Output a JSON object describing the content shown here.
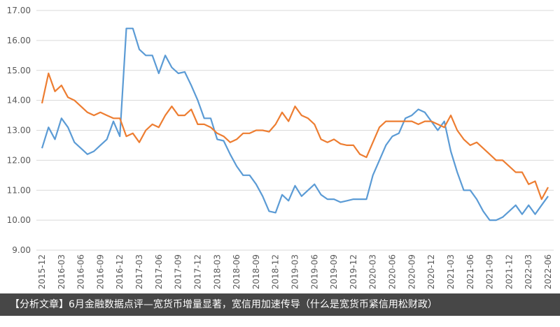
{
  "chart_data": {
    "type": "line",
    "categories": [
      "2015-12",
      null,
      null,
      "2016-03",
      null,
      null,
      "2016-06",
      null,
      null,
      "2016-09",
      null,
      null,
      "2016-12",
      null,
      null,
      "2017-03",
      null,
      null,
      "2017-06",
      null,
      null,
      "2017-09",
      null,
      null,
      "2017-12",
      null,
      null,
      "2018-03",
      null,
      null,
      "2018-06",
      null,
      null,
      "2018-09",
      null,
      null,
      "2018-12",
      null,
      null,
      "2019-03",
      null,
      null,
      "2019-06",
      null,
      null,
      "2019-09",
      null,
      null,
      "2019-12",
      null,
      null,
      "2020-03",
      null,
      null,
      "2020-06",
      null,
      null,
      "2020-09",
      null,
      null,
      "2020-12",
      null,
      null,
      "2021-03",
      null,
      null,
      "2021-06",
      null,
      null,
      "2021-09",
      null,
      null,
      "2021-12",
      null,
      null,
      "2022-03",
      null,
      null,
      "2022-06"
    ],
    "series": [
      {
        "color": "#5b9bd5",
        "values": [
          12.4,
          13.1,
          12.7,
          13.4,
          13.1,
          12.6,
          12.4,
          12.2,
          12.3,
          12.5,
          12.7,
          13.3,
          12.8,
          16.4,
          16.4,
          15.7,
          15.5,
          15.5,
          14.9,
          15.5,
          15.1,
          14.9,
          14.95,
          14.5,
          14.0,
          13.4,
          13.4,
          12.7,
          12.65,
          12.2,
          11.8,
          11.5,
          11.5,
          11.2,
          10.8,
          10.3,
          10.25,
          10.85,
          10.65,
          11.15,
          10.8,
          11.0,
          11.2,
          10.85,
          10.7,
          10.7,
          10.6,
          10.65,
          10.7,
          10.7,
          10.7,
          11.5,
          12.0,
          12.5,
          12.8,
          12.9,
          13.4,
          13.5,
          13.7,
          13.6,
          13.3,
          13.0,
          13.3,
          12.3,
          11.6,
          11.0,
          11.0,
          10.7,
          10.3,
          10.0,
          10.0,
          10.1,
          10.3,
          10.5,
          10.2,
          10.5,
          10.2,
          10.5,
          10.8
        ]
      },
      {
        "color": "#ed7d31",
        "values": [
          13.9,
          14.9,
          14.3,
          14.5,
          14.1,
          14.0,
          13.8,
          13.6,
          13.5,
          13.6,
          13.5,
          13.4,
          13.4,
          12.8,
          12.9,
          12.6,
          13.0,
          13.2,
          13.1,
          13.5,
          13.8,
          13.5,
          13.5,
          13.7,
          13.2,
          13.2,
          13.1,
          12.9,
          12.8,
          12.6,
          12.7,
          12.9,
          12.9,
          13.0,
          13.0,
          12.95,
          13.2,
          13.6,
          13.3,
          13.8,
          13.5,
          13.4,
          13.2,
          12.7,
          12.6,
          12.7,
          12.55,
          12.5,
          12.5,
          12.2,
          12.1,
          12.6,
          13.1,
          13.3,
          13.3,
          13.3,
          13.3,
          13.3,
          13.2,
          13.3,
          13.3,
          13.2,
          13.1,
          13.5,
          13.0,
          12.7,
          12.5,
          12.6,
          12.4,
          12.2,
          12.0,
          12.0,
          11.8,
          11.6,
          11.6,
          11.2,
          11.3,
          10.7,
          11.1
        ]
      }
    ],
    "ylim": [
      9,
      17
    ],
    "yticks": [
      {
        "value": 9,
        "label": "9.00"
      },
      {
        "value": 10,
        "label": "10.00"
      },
      {
        "value": 11,
        "label": "11.00"
      },
      {
        "value": 12,
        "label": "12.00"
      },
      {
        "value": 13,
        "label": "13.00"
      },
      {
        "value": 14,
        "label": "14.00"
      },
      {
        "value": 15,
        "label": "15.00"
      },
      {
        "value": 16,
        "label": "16.00"
      },
      {
        "value": 17,
        "label": "17.00"
      }
    ],
    "grid": true
  },
  "caption": "【分析文章】6月金融数据点评—宽货币增量显著，宽信用加速传导（什么是宽货币紧信用松财政）"
}
